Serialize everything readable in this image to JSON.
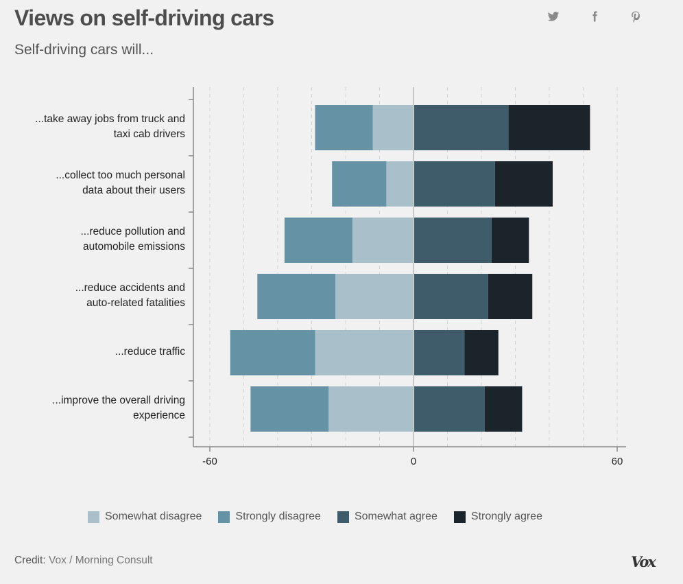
{
  "header": {
    "title": "Views on self-driving cars",
    "subtitle": "Self-driving cars will..."
  },
  "share": [
    {
      "icon": "twitter-icon",
      "label": "Share on Twitter"
    },
    {
      "icon": "facebook-icon",
      "label": "Share on Facebook"
    },
    {
      "icon": "pinterest-icon",
      "label": "Share on Pinterest"
    }
  ],
  "colors": {
    "somewhat_disagree": "#a9c0ca",
    "strongly_disagree": "#6692a5",
    "somewhat_agree": "#3f5c6b",
    "strongly_agree": "#1b242a",
    "background": "#f0f1f0",
    "gridline": "#d2d2d2",
    "axis": "#888888"
  },
  "chart_data": {
    "type": "bar",
    "orientation": "horizontal",
    "stacked": "diverging",
    "title": "Views on self-driving cars",
    "subtitle": "Self-driving cars will...",
    "xlabel": "",
    "ylabel": "",
    "xlim": [
      -60,
      60
    ],
    "x_ticks": [
      -60,
      0,
      60
    ],
    "x_tick_labels": [
      "-60",
      "0",
      "60"
    ],
    "gridline_step": 10,
    "grid": true,
    "legend_position": "bottom",
    "categories": [
      "...take away jobs from truck and taxi cab drivers",
      "...collect too much personal data about their users",
      "...reduce pollution and automobile emissions",
      "...reduce accidents and auto-related fatalities",
      "...reduce traffic",
      "...improve the overall driving experience"
    ],
    "category_lines": [
      [
        "...take away jobs from truck and",
        "taxi cab drivers"
      ],
      [
        "...collect too much personal",
        "data about their users"
      ],
      [
        "...reduce pollution and",
        "automobile emissions"
      ],
      [
        "...reduce accidents and",
        "auto-related fatalities"
      ],
      [
        "...reduce traffic"
      ],
      [
        "...improve the overall driving",
        "experience"
      ]
    ],
    "series": [
      {
        "name": "Somewhat disagree",
        "side": "negative",
        "values": [
          12,
          8,
          18,
          23,
          29,
          25
        ]
      },
      {
        "name": "Strongly disagree",
        "side": "negative",
        "values": [
          17,
          16,
          20,
          23,
          25,
          23
        ]
      },
      {
        "name": "Somewhat agree",
        "side": "positive",
        "values": [
          28,
          24,
          23,
          22,
          15,
          21
        ]
      },
      {
        "name": "Strongly agree",
        "side": "positive",
        "values": [
          24,
          17,
          11,
          13,
          10,
          11
        ]
      }
    ]
  },
  "legend": [
    {
      "label": "Somewhat disagree",
      "color": "#a9c0ca"
    },
    {
      "label": "Strongly disagree",
      "color": "#6692a5"
    },
    {
      "label": "Somewhat agree",
      "color": "#3f5c6b"
    },
    {
      "label": "Strongly agree",
      "color": "#1b242a"
    }
  ],
  "footer": {
    "credit_key": "Credit:",
    "credit_value": "Vox / Morning Consult",
    "logo": "Vox"
  }
}
